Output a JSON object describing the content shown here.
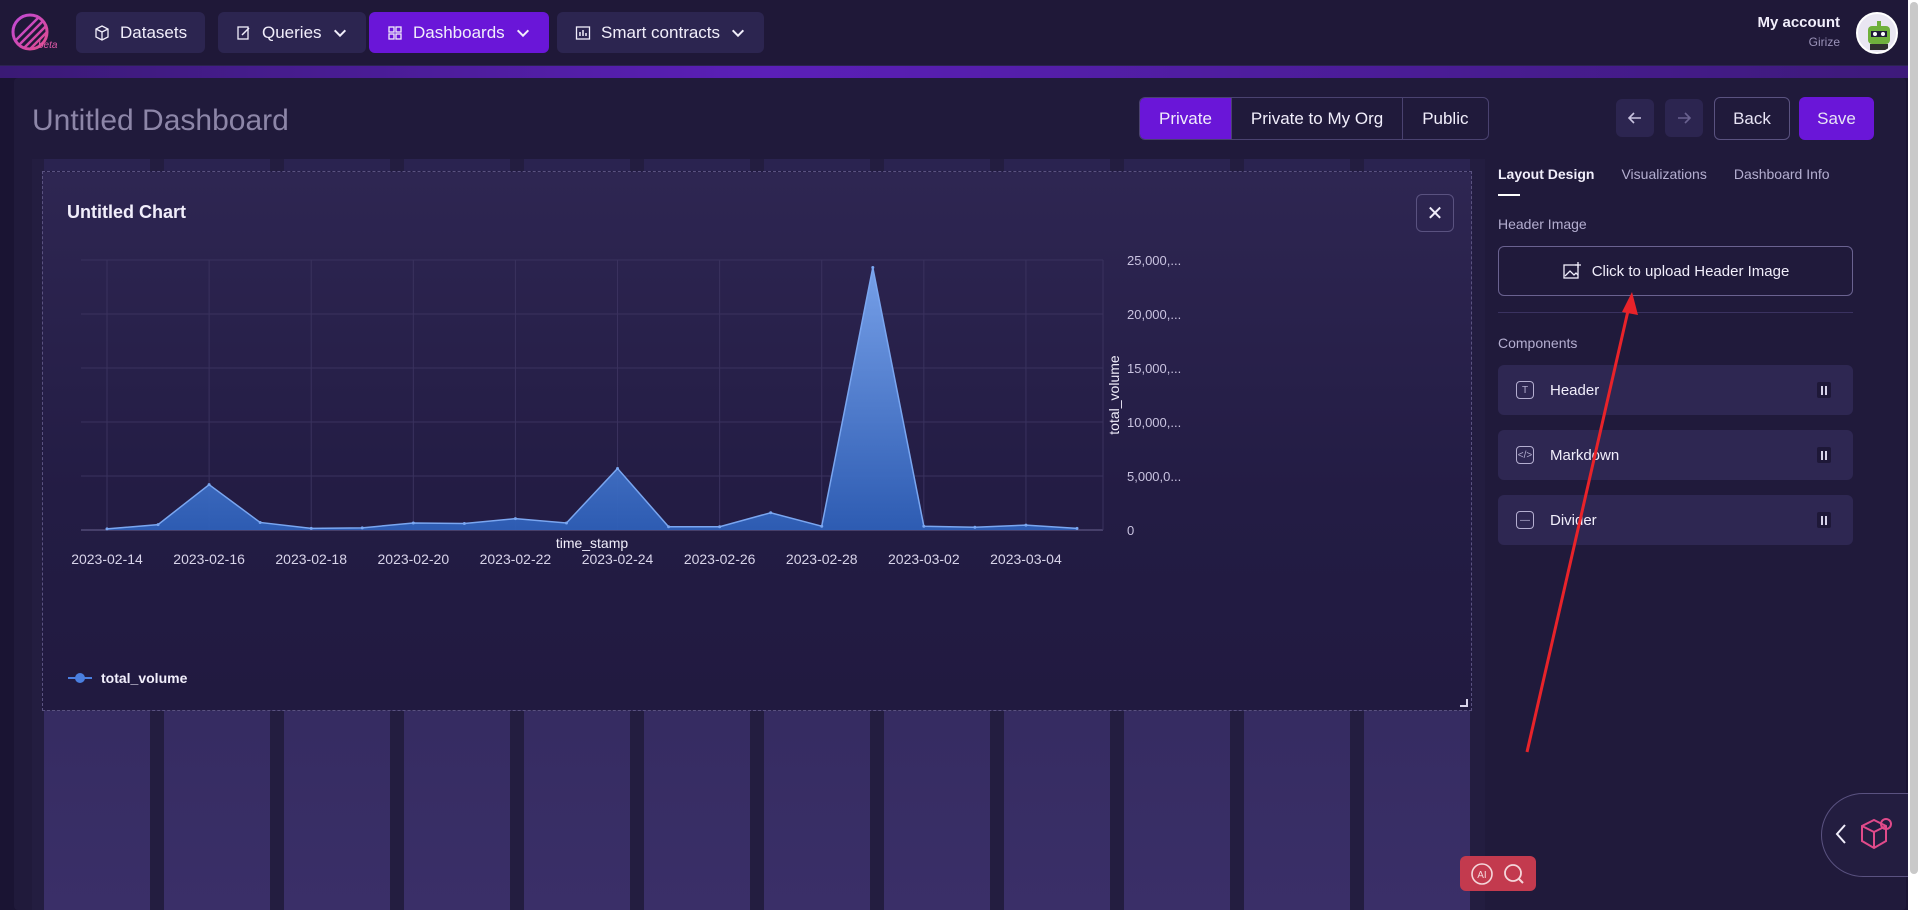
{
  "nav": {
    "logo_badge": "beta",
    "items": [
      {
        "label": "Datasets",
        "icon": "cube-icon",
        "has_menu": false
      },
      {
        "label": "Queries",
        "icon": "edit-icon",
        "has_menu": true
      },
      {
        "label": "Dashboards",
        "icon": "grid-icon",
        "has_menu": true,
        "active": true
      },
      {
        "label": "Smart contracts",
        "icon": "bar-chart-icon",
        "has_menu": true
      }
    ],
    "account_label": "My account",
    "username": "Girize"
  },
  "page": {
    "title": "Untitled Dashboard",
    "visibility_options": [
      "Private",
      "Private to My Org",
      "Public"
    ],
    "visibility_selected": "Private",
    "back_label": "Back",
    "save_label": "Save"
  },
  "chart_card": {
    "title": "Untitled Chart",
    "close_symbol": "✕"
  },
  "chart_data": {
    "type": "area",
    "title": "Untitled Chart",
    "xlabel": "time_stamp",
    "ylabel": "total_volume",
    "x_tick_labels": [
      "2023-02-14",
      "2023-02-16",
      "2023-02-18",
      "2023-02-20",
      "2023-02-22",
      "2023-02-24",
      "2023-02-26",
      "2023-02-28",
      "2023-03-02",
      "2023-03-04"
    ],
    "y_tick_labels": [
      "0",
      "5,000,0...",
      "10,000,...",
      "15,000,...",
      "20,000,...",
      "25,000,..."
    ],
    "ylim": [
      0,
      25000000
    ],
    "y_axis_side": "right",
    "series": [
      {
        "name": "total_volume",
        "color": "#4a7fe0",
        "x": [
          "2023-02-14",
          "2023-02-15",
          "2023-02-16",
          "2023-02-17",
          "2023-02-18",
          "2023-02-19",
          "2023-02-20",
          "2023-02-21",
          "2023-02-22",
          "2023-02-23",
          "2023-02-24",
          "2023-02-25",
          "2023-02-26",
          "2023-02-27",
          "2023-02-28",
          "2023-03-01",
          "2023-03-02",
          "2023-03-03",
          "2023-03-04",
          "2023-03-05"
        ],
        "values": [
          100000,
          500000,
          4200000,
          700000,
          150000,
          200000,
          650000,
          600000,
          1050000,
          650000,
          5700000,
          300000,
          300000,
          1600000,
          350000,
          24300000,
          350000,
          250000,
          450000,
          150000
        ]
      }
    ],
    "legend": "bottom-left",
    "grid": true
  },
  "panel": {
    "tabs": [
      "Layout Design",
      "Visualizations",
      "Dashboard Info"
    ],
    "active_tab": "Layout Design",
    "header_image_label": "Header Image",
    "upload_label": "Click to upload Header Image",
    "components_label": "Components",
    "components": [
      {
        "label": "Header",
        "icon": "text-icon"
      },
      {
        "label": "Markdown",
        "icon": "code-icon"
      },
      {
        "label": "Divider",
        "icon": "divider-icon"
      }
    ]
  },
  "colors": {
    "accent": "#6a16d8",
    "background": "#1a1433",
    "series": "#4a7fe0",
    "annotation_arrow": "#e8232a"
  }
}
